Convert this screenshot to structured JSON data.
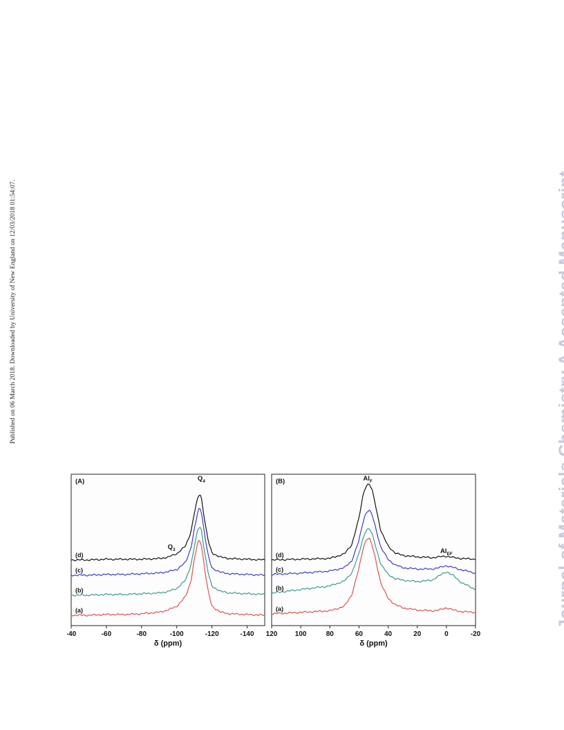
{
  "side_note": "Published on 06 March 2018. Downloaded by University of New England on 12/03/2018 01:54:07.",
  "watermark": "Journal of Materials Chemistry A Accepted Manuscript",
  "colors": {
    "a": "#e0504f",
    "b": "#3a9a8f",
    "c": "#3b3bd0",
    "d": "#111111"
  },
  "chart_data": [
    {
      "type": "line",
      "panel_label": "(A)",
      "xlabel": "δ (ppm)",
      "xlim": [
        -40,
        -150
      ],
      "xticks": [
        -40,
        -60,
        -80,
        -100,
        -120,
        -140
      ],
      "trace_labels": [
        "(a)",
        "(b)",
        "(c)",
        "(d)"
      ],
      "annotations": [
        {
          "text": "Q",
          "sub": "4",
          "x": -114
        },
        {
          "text": "Q",
          "sub": "3",
          "x": -97
        }
      ],
      "series": [
        {
          "label": "(a)",
          "color": "#e0504f",
          "x": [
            -40,
            -50,
            -60,
            -70,
            -80,
            -90,
            -95,
            -100,
            -105,
            -108,
            -110,
            -112,
            -113,
            -114,
            -116,
            -118,
            -120,
            -125,
            -130,
            -140,
            -150
          ],
          "y": [
            0,
            0,
            0.01,
            0.01,
            0.02,
            0.04,
            0.07,
            0.12,
            0.25,
            0.45,
            0.75,
            0.98,
            1.0,
            0.95,
            0.6,
            0.3,
            0.12,
            0.04,
            0.02,
            0.01,
            0
          ]
        },
        {
          "label": "(b)",
          "color": "#3a9a8f",
          "x": [
            -40,
            -50,
            -60,
            -70,
            -80,
            -90,
            -95,
            -100,
            -105,
            -108,
            -110,
            -112,
            -113,
            -114,
            -116,
            -118,
            -120,
            -125,
            -130,
            -140,
            -150
          ],
          "y": [
            0,
            0,
            0.01,
            0.01,
            0.02,
            0.03,
            0.05,
            0.09,
            0.2,
            0.4,
            0.65,
            0.88,
            0.92,
            0.88,
            0.55,
            0.28,
            0.12,
            0.05,
            0.03,
            0.02,
            0.01
          ]
        },
        {
          "label": "(c)",
          "color": "#3b3bd0",
          "x": [
            -40,
            -50,
            -60,
            -70,
            -80,
            -90,
            -95,
            -100,
            -105,
            -108,
            -110,
            -112,
            -113,
            -114,
            -116,
            -118,
            -120,
            -125,
            -130,
            -140,
            -150
          ],
          "y": [
            0,
            0,
            0.01,
            0.01,
            0.02,
            0.03,
            0.05,
            0.08,
            0.18,
            0.38,
            0.65,
            0.9,
            0.96,
            0.9,
            0.55,
            0.26,
            0.1,
            0.04,
            0.02,
            0.01,
            0
          ]
        },
        {
          "label": "(d)",
          "color": "#111111",
          "x": [
            -40,
            -50,
            -60,
            -70,
            -80,
            -90,
            -95,
            -97,
            -100,
            -105,
            -108,
            -110,
            -112,
            -113,
            -114,
            -116,
            -118,
            -120,
            -125,
            -130,
            -140,
            -150
          ],
          "y": [
            0,
            0,
            0.01,
            0.01,
            0.01,
            0.02,
            0.04,
            0.06,
            0.09,
            0.2,
            0.4,
            0.68,
            0.9,
            0.96,
            0.9,
            0.55,
            0.26,
            0.1,
            0.04,
            0.02,
            0.01,
            0
          ]
        }
      ]
    },
    {
      "type": "line",
      "panel_label": "(B)",
      "xlabel": "δ (ppm)",
      "xlim": [
        120,
        -20
      ],
      "xticks": [
        120,
        100,
        80,
        60,
        40,
        20,
        0,
        -20
      ],
      "trace_labels": [
        "(a)",
        "(b)",
        "(c)",
        "(d)"
      ],
      "annotations": [
        {
          "text": "Al",
          "sub": "F",
          "x": 54
        },
        {
          "text": "Al",
          "sub": "EF",
          "x": 0
        }
      ],
      "series": [
        {
          "label": "(a)",
          "color": "#e0504f",
          "x": [
            120,
            100,
            80,
            70,
            65,
            60,
            57,
            55,
            53,
            51,
            49,
            45,
            40,
            35,
            30,
            20,
            10,
            5,
            0,
            -5,
            -10,
            -20
          ],
          "y": [
            0,
            0.02,
            0.04,
            0.1,
            0.25,
            0.6,
            0.88,
            0.98,
            1.0,
            0.9,
            0.75,
            0.4,
            0.2,
            0.12,
            0.08,
            0.05,
            0.04,
            0.05,
            0.08,
            0.05,
            0.03,
            0.02
          ]
        },
        {
          "label": "(b)",
          "color": "#3a9a8f",
          "x": [
            120,
            100,
            80,
            70,
            65,
            60,
            57,
            55,
            53,
            51,
            49,
            45,
            40,
            35,
            30,
            20,
            10,
            5,
            0,
            -5,
            -10,
            -20
          ],
          "y": [
            0,
            0.05,
            0.1,
            0.17,
            0.28,
            0.55,
            0.78,
            0.88,
            0.9,
            0.82,
            0.68,
            0.4,
            0.26,
            0.2,
            0.18,
            0.16,
            0.18,
            0.24,
            0.3,
            0.24,
            0.15,
            0.05
          ]
        },
        {
          "label": "(c)",
          "color": "#3b3bd0",
          "x": [
            120,
            100,
            80,
            70,
            65,
            60,
            57,
            55,
            53,
            51,
            49,
            45,
            40,
            35,
            30,
            20,
            10,
            5,
            0,
            -5,
            -10,
            -20
          ],
          "y": [
            0,
            0.02,
            0.05,
            0.1,
            0.2,
            0.5,
            0.8,
            0.92,
            0.95,
            0.88,
            0.72,
            0.4,
            0.22,
            0.14,
            0.1,
            0.08,
            0.08,
            0.1,
            0.13,
            0.1,
            0.07,
            0.02
          ]
        },
        {
          "label": "(d)",
          "color": "#111111",
          "x": [
            120,
            100,
            80,
            70,
            65,
            60,
            57,
            55,
            53,
            51,
            49,
            45,
            40,
            35,
            30,
            20,
            10,
            5,
            0,
            -5,
            -10,
            -20
          ],
          "y": [
            0,
            0.01,
            0.02,
            0.08,
            0.2,
            0.55,
            0.88,
            0.98,
            1.0,
            0.92,
            0.75,
            0.38,
            0.18,
            0.09,
            0.06,
            0.04,
            0.03,
            0.04,
            0.05,
            0.03,
            0.02,
            0.01
          ]
        }
      ]
    }
  ]
}
